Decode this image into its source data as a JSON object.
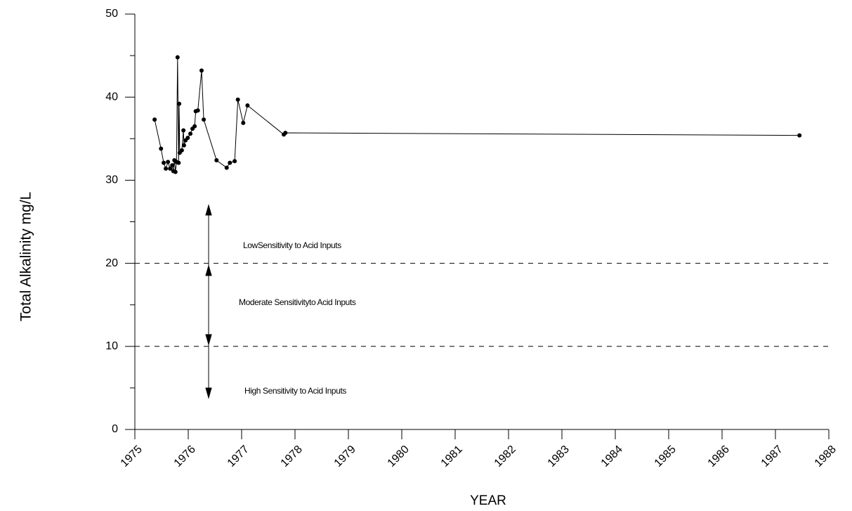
{
  "chart_data": {
    "type": "line",
    "x_label": "YEAR",
    "y_label": "Total Alkalinity mg/L",
    "x": [
      1975.37,
      1975.49,
      1975.54,
      1975.58,
      1975.62,
      1975.66,
      1975.7,
      1975.72,
      1975.74,
      1975.76,
      1975.78,
      1975.8,
      1975.82,
      1975.83,
      1975.84,
      1975.88,
      1975.91,
      1975.92,
      1975.95,
      1975.99,
      1976.04,
      1976.08,
      1976.12,
      1976.14,
      1976.18,
      1976.25,
      1976.29,
      1976.53,
      1976.72,
      1976.78,
      1976.87,
      1976.93,
      1977.03,
      1977.11,
      1977.79,
      1977.82,
      1987.45
    ],
    "series": [
      {
        "color": "#000000",
        "values": [
          37.3,
          33.8,
          32.1,
          31.4,
          32.2,
          31.4,
          31.8,
          31.1,
          32.4,
          31.0,
          32.2,
          44.8,
          32.1,
          39.2,
          33.3,
          33.6,
          36.0,
          34.2,
          34.8,
          35.1,
          35.6,
          36.2,
          36.5,
          38.3,
          38.4,
          43.2,
          37.3,
          32.4,
          31.5,
          32.1,
          32.3,
          39.7,
          36.9,
          39.0,
          35.5,
          35.7,
          35.4
        ]
      }
    ],
    "xlim": [
      1975,
      1988
    ],
    "xticks": [
      1975,
      1976,
      1977,
      1978,
      1979,
      1980,
      1981,
      1982,
      1983,
      1984,
      1985,
      1986,
      1987,
      1988
    ],
    "ylim": [
      0,
      50
    ],
    "yticks": [
      0,
      10,
      20,
      30,
      40,
      50
    ],
    "reference_lines": [
      20,
      10
    ],
    "annotations": [
      "LowSensitivity to Acid Inputs",
      "Moderate Sensitivityto Acid Inputs",
      "High Sensitivity to Acid Inputs"
    ]
  }
}
